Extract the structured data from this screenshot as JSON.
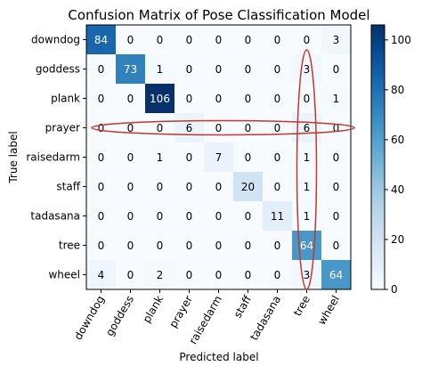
{
  "chart_data": {
    "type": "heatmap",
    "title": "Confusion Matrix of Pose Classification Model",
    "xlabel": "Predicted label",
    "ylabel": "True label",
    "labels": [
      "downdog",
      "goddess",
      "plank",
      "prayer",
      "raisedarm",
      "staff",
      "tadasana",
      "tree",
      "wheel"
    ],
    "matrix": [
      [
        84,
        0,
        0,
        0,
        0,
        0,
        0,
        0,
        3
      ],
      [
        0,
        73,
        1,
        0,
        0,
        0,
        0,
        3,
        0
      ],
      [
        0,
        0,
        106,
        0,
        0,
        0,
        0,
        0,
        1
      ],
      [
        0,
        0,
        0,
        6,
        0,
        0,
        0,
        6,
        0
      ],
      [
        0,
        0,
        1,
        0,
        7,
        0,
        0,
        1,
        0
      ],
      [
        0,
        0,
        0,
        0,
        0,
        20,
        0,
        1,
        0
      ],
      [
        0,
        0,
        0,
        0,
        0,
        0,
        11,
        1,
        0
      ],
      [
        0,
        0,
        0,
        0,
        0,
        0,
        0,
        64,
        0
      ],
      [
        4,
        0,
        2,
        0,
        0,
        0,
        0,
        3,
        64
      ]
    ],
    "colormap": "Blues",
    "vmin": 0,
    "vmax": 106,
    "colorbar_ticks": [
      0,
      20,
      40,
      60,
      80,
      100
    ],
    "annotations": [
      {
        "shape": "ellipse",
        "around": "row",
        "target": "prayer",
        "color": "#c0392b"
      },
      {
        "shape": "ellipse",
        "around": "column",
        "target": "tree",
        "color": "#c0392b"
      }
    ]
  }
}
